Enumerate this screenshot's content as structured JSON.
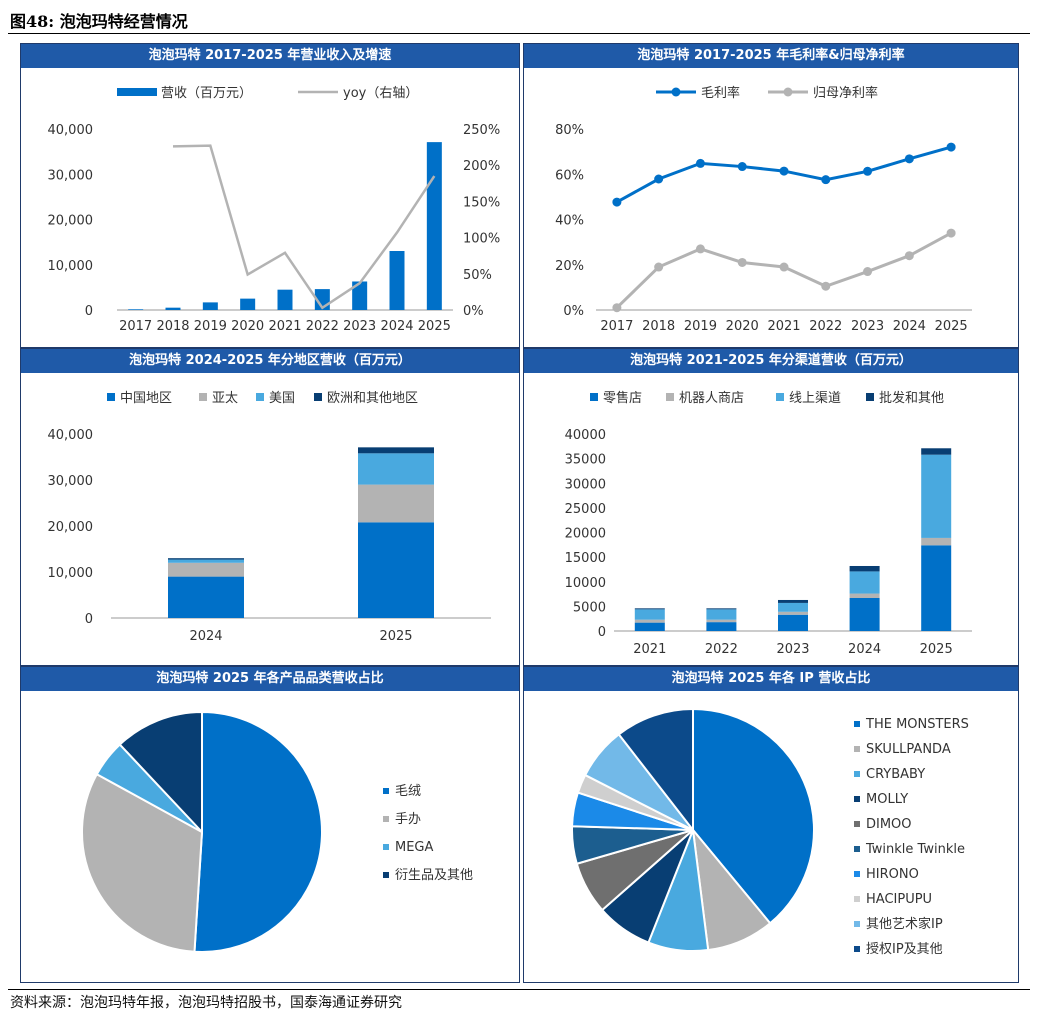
{
  "figure": {
    "title": "图48:  泡泡玛特经营情况",
    "source": "资料来源：泡泡玛特年报，泡泡玛特招股书，国泰海通证券研究"
  },
  "colors": {
    "blue": "#0070c8",
    "gray": "#b3b3b3",
    "lightblue": "#49a9df",
    "navy": "#083e73",
    "header": "#1f5aa8"
  },
  "chart_data": [
    {
      "id": "revenue",
      "type": "bar",
      "title": "泡泡玛特 2017-2025 年营业收入及增速",
      "categories": [
        "2017",
        "2018",
        "2019",
        "2020",
        "2021",
        "2022",
        "2023",
        "2024",
        "2025"
      ],
      "series": [
        {
          "name": "营收（百万元）",
          "axis": "left",
          "values": [
            158,
            514,
            1683,
            2513,
            4491,
            4617,
            6301,
            13038,
            37100
          ],
          "color": "#0070c8"
        },
        {
          "name": "yoy（右轴）",
          "axis": "right",
          "type": "line",
          "values": [
            null,
            226,
            227,
            49,
            79,
            3,
            37,
            107,
            185
          ],
          "color": "#b3b3b3"
        }
      ],
      "y_left": {
        "ylim": [
          0,
          40000
        ],
        "ticks": [
          "0",
          "10,000",
          "20,000",
          "30,000",
          "40,000"
        ]
      },
      "y_right": {
        "ylim": [
          0,
          250
        ],
        "ticks": [
          "0%",
          "50%",
          "100%",
          "150%",
          "200%",
          "250%"
        ]
      },
      "legend": "top"
    },
    {
      "id": "margins",
      "type": "line",
      "title": "泡泡玛特 2017-2025 年毛利率&归母净利率",
      "categories": [
        "2017",
        "2018",
        "2019",
        "2020",
        "2021",
        "2022",
        "2023",
        "2024",
        "2025"
      ],
      "series": [
        {
          "name": "毛利率",
          "values": [
            47.7,
            57.9,
            64.8,
            63.4,
            61.4,
            57.6,
            61.3,
            66.8,
            72.0
          ],
          "color": "#0070c8"
        },
        {
          "name": "归母净利率",
          "values": [
            1.0,
            19.0,
            27.0,
            21.0,
            19.0,
            10.5,
            17.0,
            24.0,
            34.0
          ],
          "color": "#b3b3b3"
        }
      ],
      "ylim": [
        0,
        80
      ],
      "ticks": [
        "0%",
        "20%",
        "40%",
        "60%",
        "80%"
      ],
      "legend": "top"
    },
    {
      "id": "region",
      "type": "bar",
      "stacked": true,
      "title": "泡泡玛特 2024-2025 年分地区营收（百万元）",
      "categories": [
        "2024",
        "2025"
      ],
      "series": [
        {
          "name": "中国地区",
          "values": [
            9000,
            20800
          ],
          "color": "#0070c8"
        },
        {
          "name": "亚太",
          "values": [
            3000,
            8200
          ],
          "color": "#b3b3b3"
        },
        {
          "name": "美国",
          "values": [
            700,
            6800
          ],
          "color": "#49a9df"
        },
        {
          "name": "欧洲和其他地区",
          "values": [
            300,
            1300
          ],
          "color": "#083e73"
        }
      ],
      "ylim": [
        0,
        40000
      ],
      "ticks": [
        "0",
        "10,000",
        "20,000",
        "30,000",
        "40,000"
      ],
      "legend": "top"
    },
    {
      "id": "channel",
      "type": "bar",
      "stacked": true,
      "title": "泡泡玛特 2021-2025 年分渠道营收（百万元）",
      "categories": [
        "2021",
        "2022",
        "2023",
        "2024",
        "2025"
      ],
      "series": [
        {
          "name": "零售店",
          "values": [
            1700,
            1800,
            3300,
            6700,
            17400
          ],
          "color": "#0070c8"
        },
        {
          "name": "机器人商店",
          "values": [
            600,
            500,
            600,
            900,
            1500
          ],
          "color": "#b3b3b3"
        },
        {
          "name": "线上渠道",
          "values": [
            2100,
            2100,
            1800,
            4500,
            16900
          ],
          "color": "#49a9df"
        },
        {
          "name": "批发和其他",
          "values": [
            200,
            200,
            600,
            1100,
            1300
          ],
          "color": "#083e73"
        }
      ],
      "ylim": [
        0,
        40000
      ],
      "ticks": [
        "0",
        "5000",
        "10000",
        "15000",
        "20000",
        "25000",
        "30000",
        "35000",
        "40000"
      ],
      "legend": "top"
    },
    {
      "id": "product",
      "type": "pie",
      "title": "泡泡玛特 2025 年各产品品类营收占比",
      "series": [
        {
          "name": "毛绒",
          "value": 51,
          "color": "#0070c8"
        },
        {
          "name": "手办",
          "value": 32,
          "color": "#b3b3b3"
        },
        {
          "name": "MEGA",
          "value": 5,
          "color": "#49a9df"
        },
        {
          "name": "衍生品及其他",
          "value": 12,
          "color": "#083e73"
        }
      ],
      "legend": "right"
    },
    {
      "id": "ip",
      "type": "pie",
      "title": "泡泡玛特 2025 年各 IP 营收占比",
      "series": [
        {
          "name": "THE MONSTERS",
          "value": 39,
          "color": "#0070c8"
        },
        {
          "name": "SKULLPANDA",
          "value": 9,
          "color": "#b3b3b3"
        },
        {
          "name": "CRYBABY",
          "value": 8,
          "color": "#49a9df"
        },
        {
          "name": "MOLLY",
          "value": 7.5,
          "color": "#083e73"
        },
        {
          "name": "DIMOO",
          "value": 7,
          "color": "#6f6f6f"
        },
        {
          "name": "Twinkle Twinkle",
          "value": 5,
          "color": "#1c5e8f"
        },
        {
          "name": "HIRONO",
          "value": 4.5,
          "color": "#1b8ae8"
        },
        {
          "name": "HACIPUPU",
          "value": 2.5,
          "color": "#cfcfcf"
        },
        {
          "name": "其他艺术家IP",
          "value": 7,
          "color": "#72b9e8"
        },
        {
          "name": "授权IP及其他",
          "value": 10.5,
          "color": "#0c4a8a"
        }
      ],
      "legend": "right"
    }
  ]
}
